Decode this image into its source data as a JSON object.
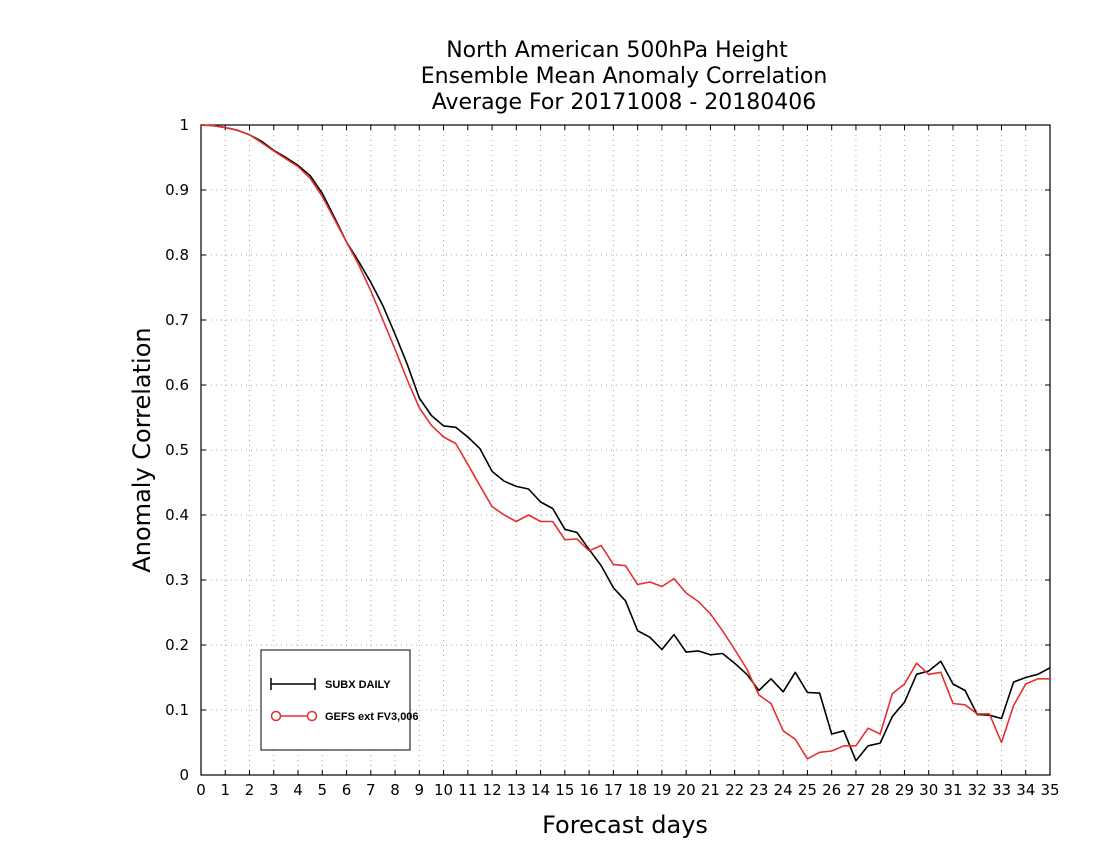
{
  "chart_data": {
    "type": "line",
    "title": [
      "North American 500hPa Height",
      "Ensemble Mean Anomaly Correlation",
      "Average For 20171008 - 20180406"
    ],
    "xlabel": "Forecast days",
    "ylabel": "Anomaly Correlation",
    "xlim": [
      0,
      35
    ],
    "ylim": [
      0,
      1
    ],
    "x_ticks": [
      "0",
      "1",
      "2",
      "3",
      "4",
      "5",
      "6",
      "7",
      "8",
      "9",
      "10",
      "11",
      "12",
      "13",
      "14",
      "15",
      "16",
      "17",
      "18",
      "19",
      "20",
      "21",
      "22",
      "23",
      "24",
      "25",
      "26",
      "27",
      "28",
      "29",
      "30",
      "31",
      "32",
      "33",
      "34",
      "35"
    ],
    "y_ticks": [
      "0",
      "0.1",
      "0.2",
      "0.3",
      "0.4",
      "0.5",
      "0.6",
      "0.7",
      "0.8",
      "0.9",
      "1"
    ],
    "grid": true,
    "legend_position": "bottom-left",
    "series": [
      {
        "name": "SUBX DAILY",
        "color": "#000000",
        "marker": "plus",
        "x": [
          0,
          0.5,
          1,
          1.5,
          2,
          2.5,
          3,
          3.5,
          4,
          4.5,
          5,
          5.5,
          6,
          6.5,
          7,
          7.5,
          8,
          8.5,
          9,
          9.5,
          10,
          10.5,
          11,
          11.5,
          12,
          12.5,
          13,
          13.5,
          14,
          14.5,
          15,
          15.5,
          16,
          16.5,
          17,
          17.5,
          18,
          18.5,
          19,
          19.5,
          20,
          20.5,
          21,
          21.5,
          22,
          22.5,
          23,
          23.5,
          24,
          24.5,
          25,
          25.5,
          26,
          26.5,
          27,
          27.5,
          28,
          28.5,
          29,
          29.5,
          30,
          30.5,
          31,
          31.5,
          32,
          32.5,
          33,
          33.5,
          34,
          34.5,
          35
        ],
        "y": [
          1.0,
          0.999,
          0.996,
          0.992,
          0.985,
          0.975,
          0.961,
          0.95,
          0.938,
          0.922,
          0.895,
          0.858,
          0.82,
          0.79,
          0.758,
          0.722,
          0.678,
          0.632,
          0.58,
          0.553,
          0.537,
          0.535,
          0.52,
          0.502,
          0.467,
          0.452,
          0.444,
          0.44,
          0.42,
          0.41,
          0.378,
          0.373,
          0.347,
          0.322,
          0.288,
          0.268,
          0.222,
          0.212,
          0.193,
          0.216,
          0.189,
          0.191,
          0.185,
          0.187,
          0.172,
          0.155,
          0.13,
          0.148,
          0.128,
          0.158,
          0.127,
          0.126,
          0.063,
          0.068,
          0.022,
          0.045,
          0.049,
          0.09,
          0.112,
          0.155,
          0.16,
          0.175,
          0.14,
          0.13,
          0.093,
          0.092,
          0.087,
          0.143,
          0.15,
          0.155,
          0.165
        ]
      },
      {
        "name": "GEFS ext FV3,006",
        "color": "#e53030",
        "marker": "circle",
        "x": [
          0,
          0.5,
          1,
          1.5,
          2,
          2.5,
          3,
          3.5,
          4,
          4.5,
          5,
          5.5,
          6,
          6.5,
          7,
          7.5,
          8,
          8.5,
          9,
          9.5,
          10,
          10.5,
          11,
          11.5,
          12,
          12.5,
          13,
          13.5,
          14,
          14.5,
          15,
          15.5,
          16,
          16.5,
          17,
          17.5,
          18,
          18.5,
          19,
          19.5,
          20,
          20.5,
          21,
          21.5,
          22,
          22.5,
          23,
          23.5,
          24,
          24.5,
          25,
          25.5,
          26,
          26.5,
          27,
          27.5,
          28,
          28.5,
          29,
          29.5,
          30,
          30.5,
          31,
          31.5,
          32,
          32.5,
          33,
          33.5,
          34,
          34.5,
          35
        ],
        "y": [
          1.0,
          0.999,
          0.996,
          0.992,
          0.985,
          0.973,
          0.96,
          0.948,
          0.936,
          0.918,
          0.89,
          0.855,
          0.82,
          0.785,
          0.745,
          0.7,
          0.655,
          0.608,
          0.565,
          0.538,
          0.52,
          0.51,
          0.478,
          0.445,
          0.413,
          0.4,
          0.39,
          0.4,
          0.39,
          0.39,
          0.362,
          0.363,
          0.345,
          0.353,
          0.324,
          0.322,
          0.293,
          0.297,
          0.29,
          0.302,
          0.28,
          0.267,
          0.248,
          0.222,
          0.193,
          0.163,
          0.123,
          0.11,
          0.068,
          0.055,
          0.025,
          0.035,
          0.037,
          0.045,
          0.045,
          0.072,
          0.063,
          0.125,
          0.14,
          0.172,
          0.155,
          0.158,
          0.11,
          0.108,
          0.094,
          0.094,
          0.05,
          0.107,
          0.14,
          0.148,
          0.148
        ]
      }
    ]
  }
}
